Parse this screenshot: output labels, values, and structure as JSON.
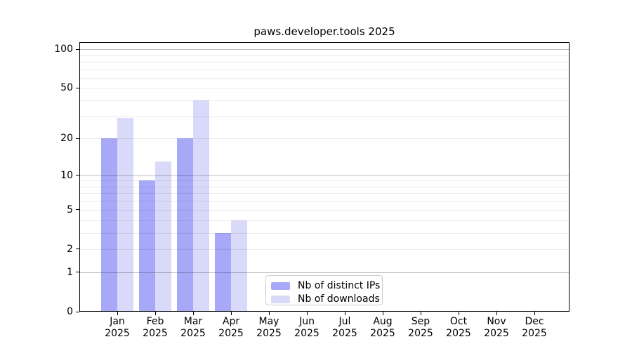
{
  "title": "paws.developer.tools 2025",
  "colors": {
    "distinct_ips_bar": "#a8a8f8",
    "downloads_bar": "#d9d9fa",
    "major_gridline": "#00000045",
    "minor_gridline": "#00000015",
    "axis_frame": "#000000",
    "legend_border": "#cccccc",
    "background": "#ffffff",
    "text": "#000000"
  },
  "legend": {
    "items": [
      {
        "label": "Nb of distinct IPs"
      },
      {
        "label": "Nb of downloads"
      }
    ]
  },
  "chart_data": {
    "type": "bar",
    "title": "paws.developer.tools 2025",
    "categories": [
      "Jan",
      "Feb",
      "Mar",
      "Apr",
      "May",
      "Jun",
      "Jul",
      "Aug",
      "Sep",
      "Oct",
      "Nov",
      "Dec"
    ],
    "category_year": "2025",
    "series": [
      {
        "name": "Nb of distinct IPs",
        "color": "#a8a8f8",
        "values": [
          20,
          9,
          20,
          3,
          0,
          0,
          0,
          0,
          0,
          0,
          0,
          0
        ]
      },
      {
        "name": "Nb of downloads",
        "color": "#d9d9fa",
        "values": [
          29,
          13,
          40,
          4,
          0,
          0,
          0,
          0,
          0,
          0,
          0,
          0
        ]
      }
    ],
    "xlabel": "",
    "ylabel": "",
    "y_scale": "log10(value+1)",
    "y_ticks": [
      0,
      1,
      2,
      5,
      10,
      20,
      50,
      100
    ],
    "y_major_gridlines": [
      1,
      10,
      100
    ],
    "y_minor_gridlines": [
      2,
      3,
      4,
      5,
      6,
      7,
      8,
      9,
      20,
      30,
      40,
      50,
      60,
      70,
      80,
      90
    ],
    "ylim": [
      0,
      113
    ],
    "grid": true,
    "grid_above_bars": true,
    "legend_position": "lower center"
  }
}
